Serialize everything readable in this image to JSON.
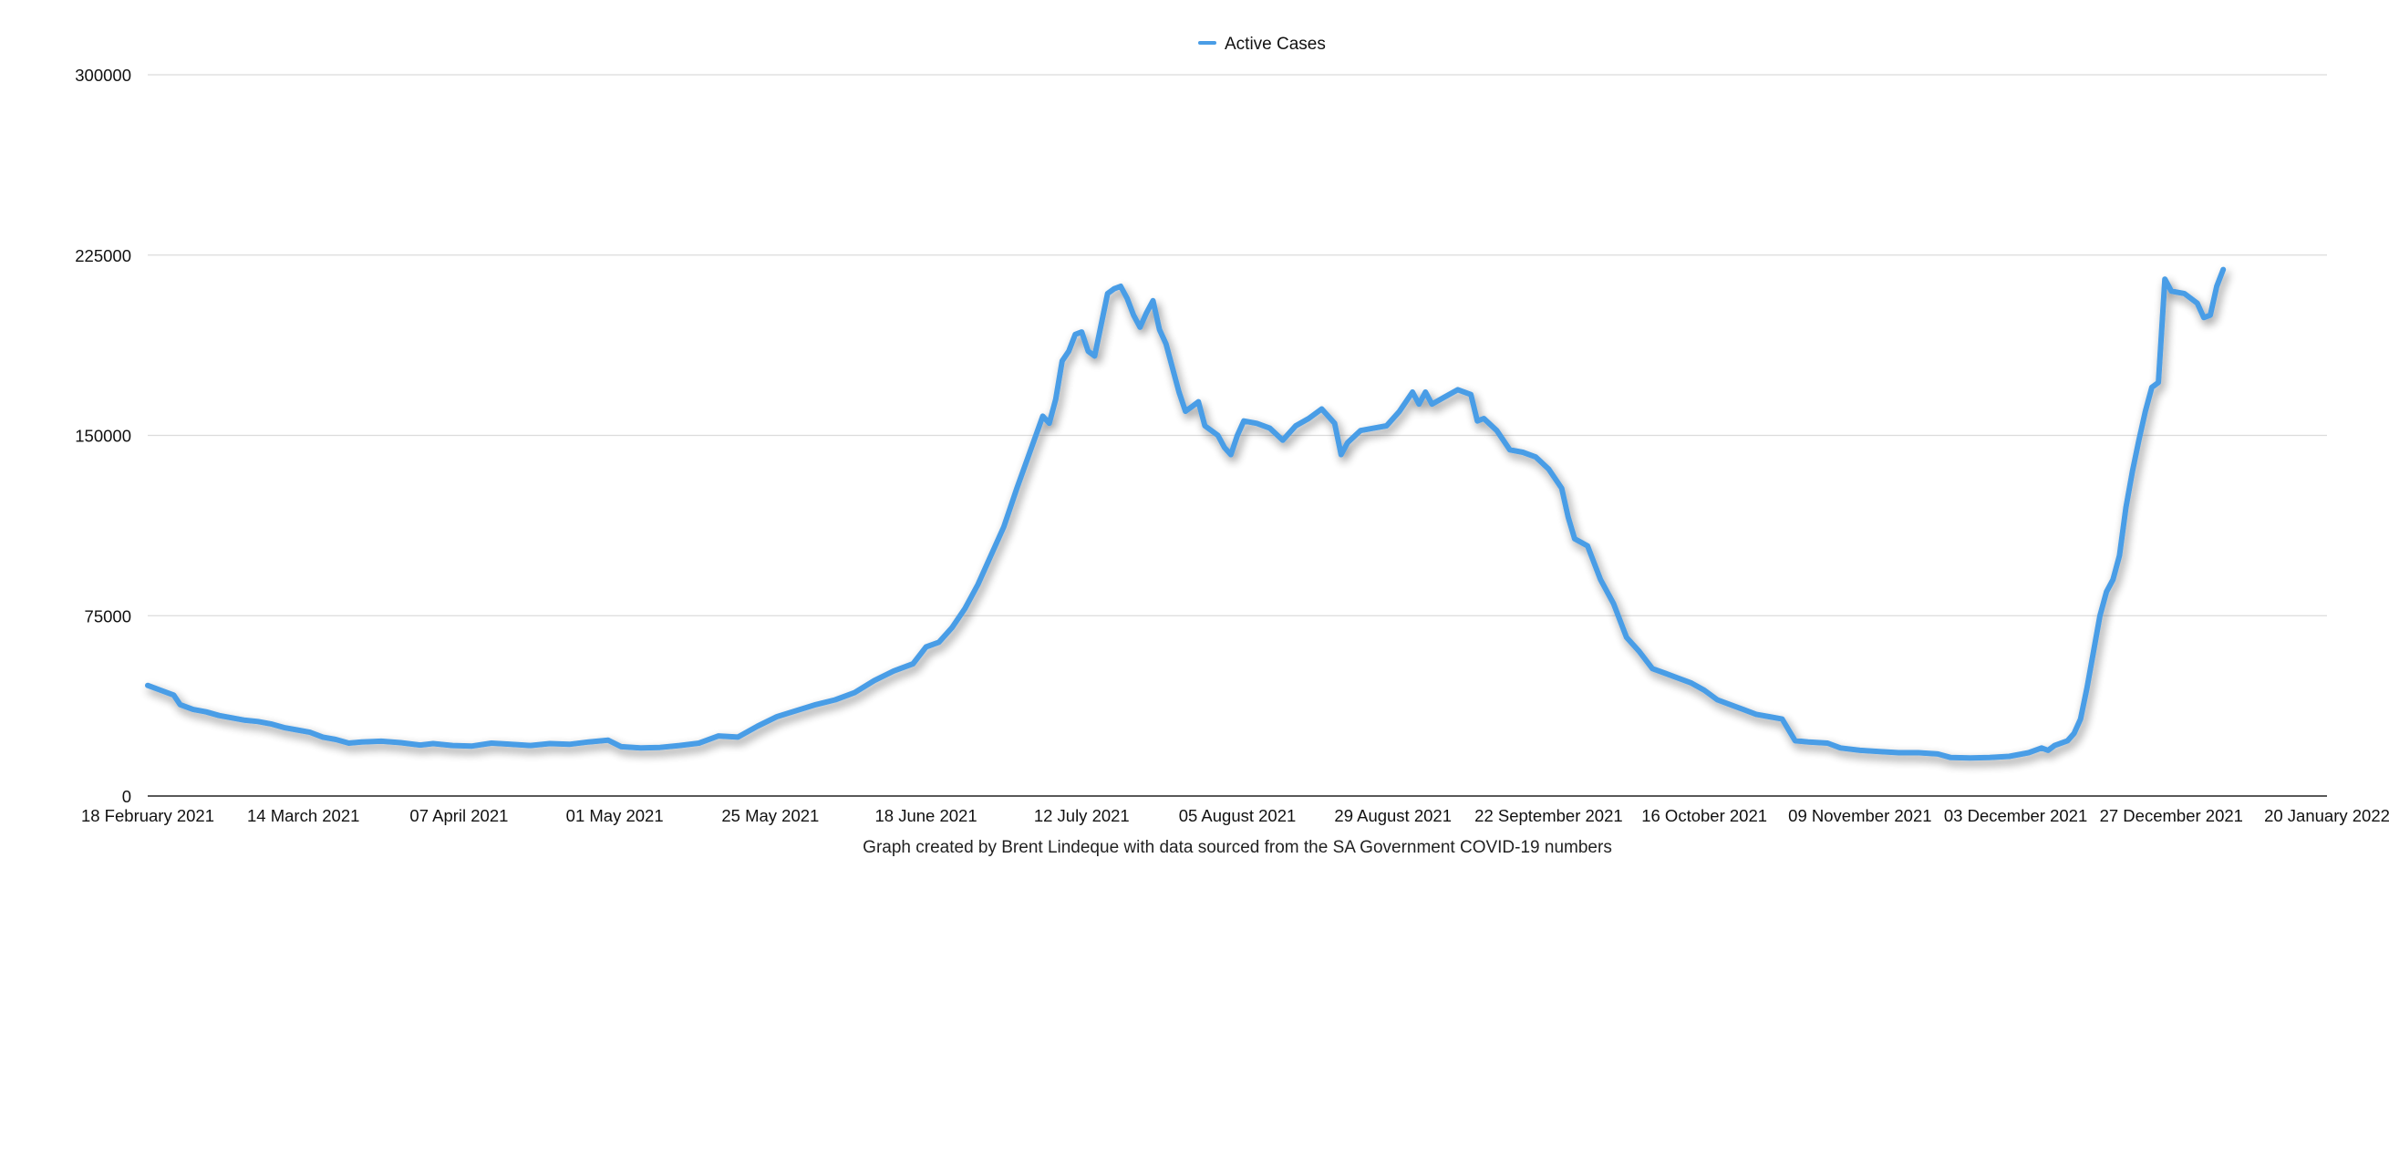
{
  "chart_data": {
    "type": "line",
    "title": "",
    "xlabel": "Graph created by Brent Lindeque with data sourced from the SA Government COVID-19 numbers",
    "ylabel": "",
    "ylim": [
      0,
      300000
    ],
    "yticks": [
      "0",
      "75000",
      "150000",
      "225000",
      "300000"
    ],
    "xlim": [
      "2021-02-18",
      "2022-01-20"
    ],
    "xticks": [
      {
        "date": "2021-02-18",
        "label": "18 February 2021"
      },
      {
        "date": "2021-03-14",
        "label": "14 March 2021"
      },
      {
        "date": "2021-04-07",
        "label": "07 April 2021"
      },
      {
        "date": "2021-05-01",
        "label": "01 May 2021"
      },
      {
        "date": "2021-05-25",
        "label": "25 May 2021"
      },
      {
        "date": "2021-06-18",
        "label": "18 June 2021"
      },
      {
        "date": "2021-07-12",
        "label": "12 July 2021"
      },
      {
        "date": "2021-08-05",
        "label": "05 August 2021"
      },
      {
        "date": "2021-08-29",
        "label": "29 August 2021"
      },
      {
        "date": "2021-09-22",
        "label": "22 September 2021"
      },
      {
        "date": "2021-10-16",
        "label": "16 October 2021"
      },
      {
        "date": "2021-11-09",
        "label": "09 November 2021"
      },
      {
        "date": "2021-12-03",
        "label": "03 December 2021"
      },
      {
        "date": "2021-12-27",
        "label": "27 December 2021"
      },
      {
        "date": "2022-01-20",
        "label": "20 January 2022"
      }
    ],
    "grid": true,
    "legend_position": "top-center",
    "series": [
      {
        "name": "Active Cases",
        "color": "#4a9de6",
        "points": [
          [
            "2021-02-18",
            46000
          ],
          [
            "2021-02-20",
            44000
          ],
          [
            "2021-02-22",
            42000
          ],
          [
            "2021-02-23",
            38000
          ],
          [
            "2021-02-25",
            36000
          ],
          [
            "2021-02-27",
            35000
          ],
          [
            "2021-03-01",
            33500
          ],
          [
            "2021-03-03",
            32500
          ],
          [
            "2021-03-05",
            31500
          ],
          [
            "2021-03-07",
            31000
          ],
          [
            "2021-03-09",
            30000
          ],
          [
            "2021-03-11",
            28500
          ],
          [
            "2021-03-13",
            27500
          ],
          [
            "2021-03-15",
            26500
          ],
          [
            "2021-03-17",
            24500
          ],
          [
            "2021-03-19",
            23500
          ],
          [
            "2021-03-21",
            22000
          ],
          [
            "2021-03-23",
            22500
          ],
          [
            "2021-03-26",
            22800
          ],
          [
            "2021-03-29",
            22200
          ],
          [
            "2021-04-01",
            21200
          ],
          [
            "2021-04-03",
            21800
          ],
          [
            "2021-04-06",
            21000
          ],
          [
            "2021-04-09",
            20800
          ],
          [
            "2021-04-12",
            22000
          ],
          [
            "2021-04-15",
            21500
          ],
          [
            "2021-04-18",
            21000
          ],
          [
            "2021-04-21",
            21800
          ],
          [
            "2021-04-24",
            21500
          ],
          [
            "2021-04-27",
            22500
          ],
          [
            "2021-04-30",
            23200
          ],
          [
            "2021-05-02",
            20500
          ],
          [
            "2021-05-05",
            20000
          ],
          [
            "2021-05-08",
            20200
          ],
          [
            "2021-05-11",
            21000
          ],
          [
            "2021-05-14",
            22000
          ],
          [
            "2021-05-17",
            25000
          ],
          [
            "2021-05-20",
            24500
          ],
          [
            "2021-05-23",
            29000
          ],
          [
            "2021-05-26",
            33000
          ],
          [
            "2021-05-29",
            35500
          ],
          [
            "2021-06-01",
            38000
          ],
          [
            "2021-06-04",
            40000
          ],
          [
            "2021-06-07",
            43000
          ],
          [
            "2021-06-10",
            48000
          ],
          [
            "2021-06-13",
            52000
          ],
          [
            "2021-06-16",
            55000
          ],
          [
            "2021-06-18",
            62000
          ],
          [
            "2021-06-20",
            64000
          ],
          [
            "2021-06-22",
            70000
          ],
          [
            "2021-06-24",
            78000
          ],
          [
            "2021-06-26",
            88000
          ],
          [
            "2021-06-28",
            100000
          ],
          [
            "2021-06-30",
            112000
          ],
          [
            "2021-07-02",
            128000
          ],
          [
            "2021-07-04",
            143000
          ],
          [
            "2021-07-06",
            158000
          ],
          [
            "2021-07-07",
            155000
          ],
          [
            "2021-07-08",
            165000
          ],
          [
            "2021-07-09",
            181000
          ],
          [
            "2021-07-10",
            185000
          ],
          [
            "2021-07-11",
            192000
          ],
          [
            "2021-07-12",
            193000
          ],
          [
            "2021-07-13",
            185000
          ],
          [
            "2021-07-14",
            183000
          ],
          [
            "2021-07-16",
            209000
          ],
          [
            "2021-07-17",
            211000
          ],
          [
            "2021-07-18",
            212000
          ],
          [
            "2021-07-19",
            207000
          ],
          [
            "2021-07-20",
            200000
          ],
          [
            "2021-07-21",
            195000
          ],
          [
            "2021-07-22",
            201000
          ],
          [
            "2021-07-23",
            206000
          ],
          [
            "2021-07-24",
            194000
          ],
          [
            "2021-07-25",
            188000
          ],
          [
            "2021-07-26",
            178000
          ],
          [
            "2021-07-27",
            168000
          ],
          [
            "2021-07-28",
            160000
          ],
          [
            "2021-07-29",
            162000
          ],
          [
            "2021-07-30",
            164000
          ],
          [
            "2021-07-31",
            154000
          ],
          [
            "2021-08-02",
            150000
          ],
          [
            "2021-08-03",
            145000
          ],
          [
            "2021-08-04",
            142000
          ],
          [
            "2021-08-05",
            150000
          ],
          [
            "2021-08-06",
            156000
          ],
          [
            "2021-08-08",
            155000
          ],
          [
            "2021-08-10",
            153000
          ],
          [
            "2021-08-12",
            148000
          ],
          [
            "2021-08-14",
            154000
          ],
          [
            "2021-08-16",
            157000
          ],
          [
            "2021-08-18",
            161000
          ],
          [
            "2021-08-20",
            155000
          ],
          [
            "2021-08-21",
            142000
          ],
          [
            "2021-08-22",
            147000
          ],
          [
            "2021-08-24",
            152000
          ],
          [
            "2021-08-26",
            153000
          ],
          [
            "2021-08-28",
            154000
          ],
          [
            "2021-08-30",
            160000
          ],
          [
            "2021-09-01",
            168000
          ],
          [
            "2021-09-02",
            163000
          ],
          [
            "2021-09-03",
            168000
          ],
          [
            "2021-09-04",
            163000
          ],
          [
            "2021-09-06",
            166000
          ],
          [
            "2021-09-08",
            169000
          ],
          [
            "2021-09-10",
            167000
          ],
          [
            "2021-09-11",
            156000
          ],
          [
            "2021-09-12",
            157000
          ],
          [
            "2021-09-14",
            152000
          ],
          [
            "2021-09-16",
            144000
          ],
          [
            "2021-09-18",
            143000
          ],
          [
            "2021-09-20",
            141000
          ],
          [
            "2021-09-22",
            136000
          ],
          [
            "2021-09-24",
            128000
          ],
          [
            "2021-09-25",
            116000
          ],
          [
            "2021-09-26",
            107000
          ],
          [
            "2021-09-28",
            104000
          ],
          [
            "2021-09-30",
            90000
          ],
          [
            "2021-10-02",
            80000
          ],
          [
            "2021-10-04",
            66000
          ],
          [
            "2021-10-06",
            60000
          ],
          [
            "2021-10-08",
            53000
          ],
          [
            "2021-10-10",
            51000
          ],
          [
            "2021-10-12",
            49000
          ],
          [
            "2021-10-14",
            47000
          ],
          [
            "2021-10-16",
            44000
          ],
          [
            "2021-10-18",
            40000
          ],
          [
            "2021-10-20",
            38000
          ],
          [
            "2021-10-22",
            36000
          ],
          [
            "2021-10-24",
            34000
          ],
          [
            "2021-10-26",
            33000
          ],
          [
            "2021-10-28",
            32000
          ],
          [
            "2021-10-30",
            23000
          ],
          [
            "2021-11-01",
            22500
          ],
          [
            "2021-11-04",
            22000
          ],
          [
            "2021-11-06",
            20000
          ],
          [
            "2021-11-09",
            19000
          ],
          [
            "2021-11-12",
            18500
          ],
          [
            "2021-11-15",
            18000
          ],
          [
            "2021-11-18",
            18000
          ],
          [
            "2021-11-21",
            17500
          ],
          [
            "2021-11-23",
            16000
          ],
          [
            "2021-11-26",
            15800
          ],
          [
            "2021-11-29",
            16000
          ],
          [
            "2021-12-02",
            16500
          ],
          [
            "2021-12-05",
            18000
          ],
          [
            "2021-12-07",
            20000
          ],
          [
            "2021-12-08",
            19000
          ],
          [
            "2021-12-09",
            21000
          ],
          [
            "2021-12-11",
            23000
          ],
          [
            "2021-12-12",
            26000
          ],
          [
            "2021-12-13",
            32000
          ],
          [
            "2021-12-14",
            45000
          ],
          [
            "2021-12-15",
            60000
          ],
          [
            "2021-12-16",
            75000
          ],
          [
            "2021-12-17",
            85000
          ],
          [
            "2021-12-18",
            90000
          ],
          [
            "2021-12-19",
            100000
          ],
          [
            "2021-12-20",
            120000
          ],
          [
            "2021-12-21",
            135000
          ],
          [
            "2021-12-22",
            148000
          ],
          [
            "2021-12-23",
            160000
          ],
          [
            "2021-12-24",
            170000
          ],
          [
            "2021-12-25",
            172000
          ],
          [
            "2021-12-26",
            215000
          ],
          [
            "2021-12-27",
            210000
          ],
          [
            "2021-12-29",
            209000
          ],
          [
            "2021-12-31",
            205000
          ],
          [
            "2022-01-01",
            199000
          ],
          [
            "2022-01-02",
            200000
          ],
          [
            "2022-01-03",
            212000
          ],
          [
            "2022-01-04",
            219000
          ]
        ]
      }
    ]
  }
}
